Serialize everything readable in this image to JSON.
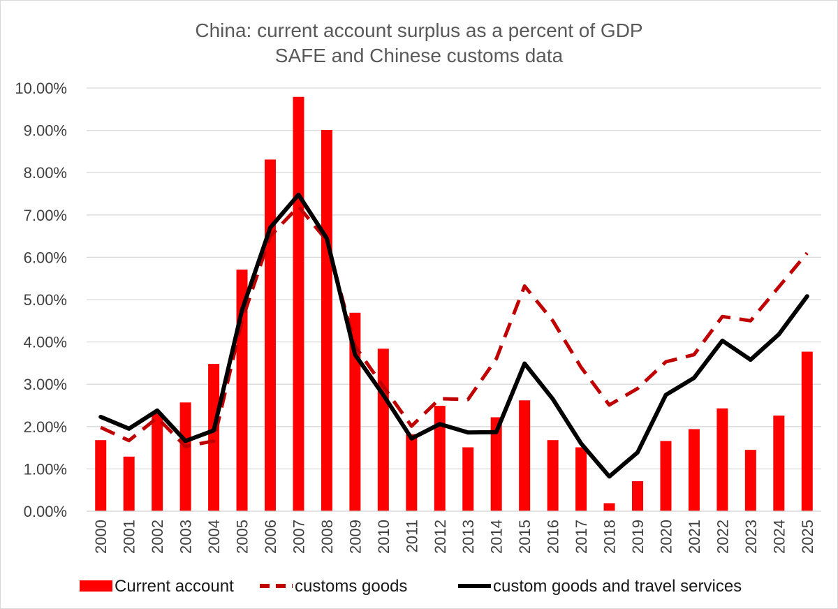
{
  "chart_data": {
    "type": "bar",
    "title": "China: current account surplus as a percent of GDP",
    "subtitle": "SAFE and Chinese customs data",
    "xlabel": "",
    "ylabel": "",
    "ylim": [
      0,
      10
    ],
    "y_ticks": [
      0,
      1,
      2,
      3,
      4,
      5,
      6,
      7,
      8,
      9,
      10
    ],
    "y_tick_labels": [
      "0.00%",
      "1.00%",
      "2.00%",
      "3.00%",
      "4.00%",
      "5.00%",
      "6.00%",
      "7.00%",
      "8.00%",
      "9.00%",
      "10.00%"
    ],
    "grid": true,
    "legend_position": "bottom",
    "categories": [
      "2000",
      "2001",
      "2002",
      "2003",
      "2004",
      "2005",
      "2006",
      "2007",
      "2008",
      "2009",
      "2010",
      "2011",
      "2012",
      "2013",
      "2014",
      "2015",
      "2016",
      "2017",
      "2018",
      "2019",
      "2020",
      "2021",
      "2022",
      "2023",
      "2024",
      "2025"
    ],
    "series": [
      {
        "name": "Current account",
        "type": "bar",
        "color": "#ff0000",
        "values": [
          1.68,
          1.29,
          2.32,
          2.57,
          3.48,
          5.71,
          8.31,
          9.79,
          9.01,
          4.69,
          3.84,
          1.82,
          2.49,
          1.51,
          2.22,
          2.62,
          1.68,
          1.51,
          0.19,
          0.71,
          1.66,
          1.94,
          2.43,
          1.45,
          2.26,
          3.77
        ]
      },
      {
        "name": "customs goods",
        "type": "line",
        "style": "dashed",
        "color": "#c00000",
        "values": [
          1.98,
          1.67,
          2.21,
          1.53,
          1.66,
          4.5,
          6.5,
          7.2,
          6.4,
          3.9,
          2.95,
          2.01,
          2.66,
          2.64,
          3.6,
          5.32,
          4.5,
          3.4,
          2.51,
          2.9,
          3.53,
          3.7,
          4.6,
          4.5,
          5.3,
          6.1
        ]
      },
      {
        "name": "custom goods and travel services",
        "type": "line",
        "style": "solid",
        "color": "#000000",
        "values": [
          2.23,
          1.95,
          2.38,
          1.66,
          1.91,
          4.75,
          6.7,
          7.48,
          6.45,
          3.7,
          2.75,
          1.72,
          2.06,
          1.86,
          1.87,
          3.49,
          2.65,
          1.6,
          0.82,
          1.39,
          2.75,
          3.15,
          4.03,
          3.58,
          4.18,
          5.08
        ]
      }
    ]
  }
}
